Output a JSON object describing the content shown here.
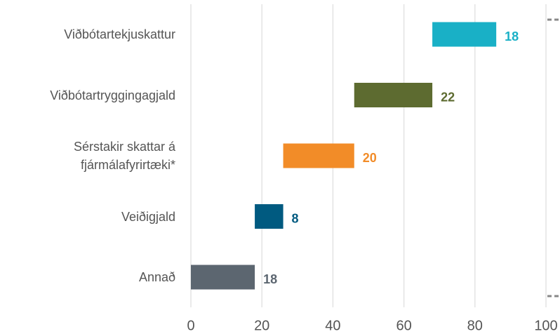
{
  "chart_data": {
    "type": "waterfall",
    "orientation": "horizontal",
    "categories": [
      "Annað",
      "Veiðigjald",
      "Sérstakir skattar á fjármálafyrirtæki*",
      "Viðbótartryggingagjald",
      "Viðbótartekjuskattur"
    ],
    "values": [
      18,
      8,
      20,
      22,
      18
    ],
    "colors": [
      "#5c6670",
      "#005a80",
      "#f28c28",
      "#5d6b30",
      "#19b0c6"
    ],
    "xlim": [
      0,
      100
    ],
    "xticks": [
      0,
      20,
      40,
      60,
      80,
      100
    ],
    "grid": true
  }
}
